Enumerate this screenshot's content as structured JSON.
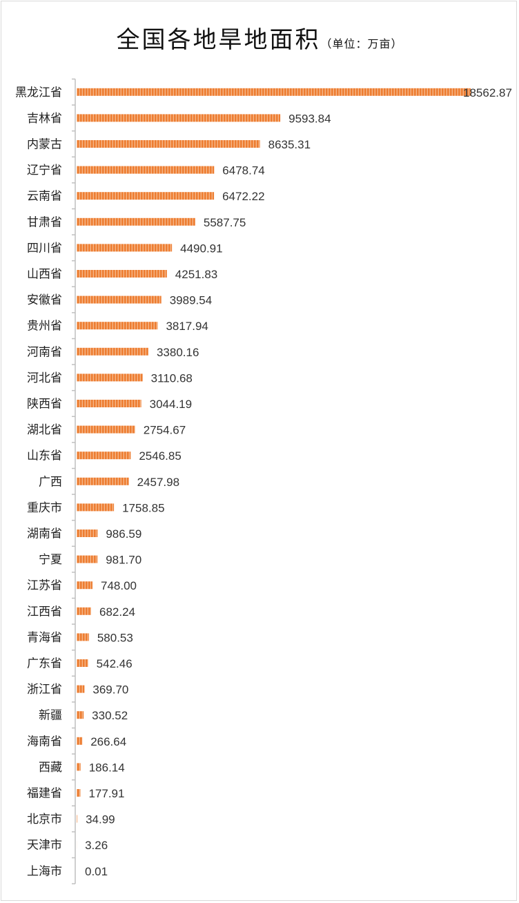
{
  "chart_data": {
    "type": "bar",
    "orientation": "horizontal",
    "title": "全国各地旱地面积",
    "unit_note": "（单位：万亩）",
    "categories": [
      "黑龙江省",
      "吉林省",
      "内蒙古",
      "辽宁省",
      "云南省",
      "甘肃省",
      "四川省",
      "山西省",
      "安徽省",
      "贵州省",
      "河南省",
      "河北省",
      "陕西省",
      "湖北省",
      "山东省",
      "广西",
      "重庆市",
      "湖南省",
      "宁夏",
      "江苏省",
      "江西省",
      "青海省",
      "广东省",
      "浙江省",
      "新疆",
      "海南省",
      "西藏",
      "福建省",
      "北京市",
      "天津市",
      "上海市"
    ],
    "value_labels": [
      "18562.87",
      "9593.84",
      "8635.31",
      "6478.74",
      "6472.22",
      "5587.75",
      "4490.91",
      "4251.83",
      "3989.54",
      "3817.94",
      "3380.16",
      "3110.68",
      "3044.19",
      "2754.67",
      "2546.85",
      "2457.98",
      "1758.85",
      "986.59",
      "981.70",
      "748.00",
      "682.24",
      "580.53",
      "542.46",
      "369.70",
      "330.52",
      "266.64",
      "186.14",
      "177.91",
      "34.99",
      "3.26",
      "0.01"
    ],
    "values": [
      18562.87,
      9593.84,
      8635.31,
      6478.74,
      6472.22,
      5587.75,
      4490.91,
      4251.83,
      3989.54,
      3817.94,
      3380.16,
      3110.68,
      3044.19,
      2754.67,
      2546.85,
      2457.98,
      1758.85,
      986.59,
      981.7,
      748.0,
      682.24,
      580.53,
      542.46,
      369.7,
      330.52,
      266.64,
      186.14,
      177.91,
      34.99,
      3.26,
      0.01
    ],
    "xlim": [
      0,
      18562.87
    ],
    "bar_color": "#ed7d31",
    "bar_fill": "vertical-hatch",
    "grid": false,
    "legend": "none"
  }
}
